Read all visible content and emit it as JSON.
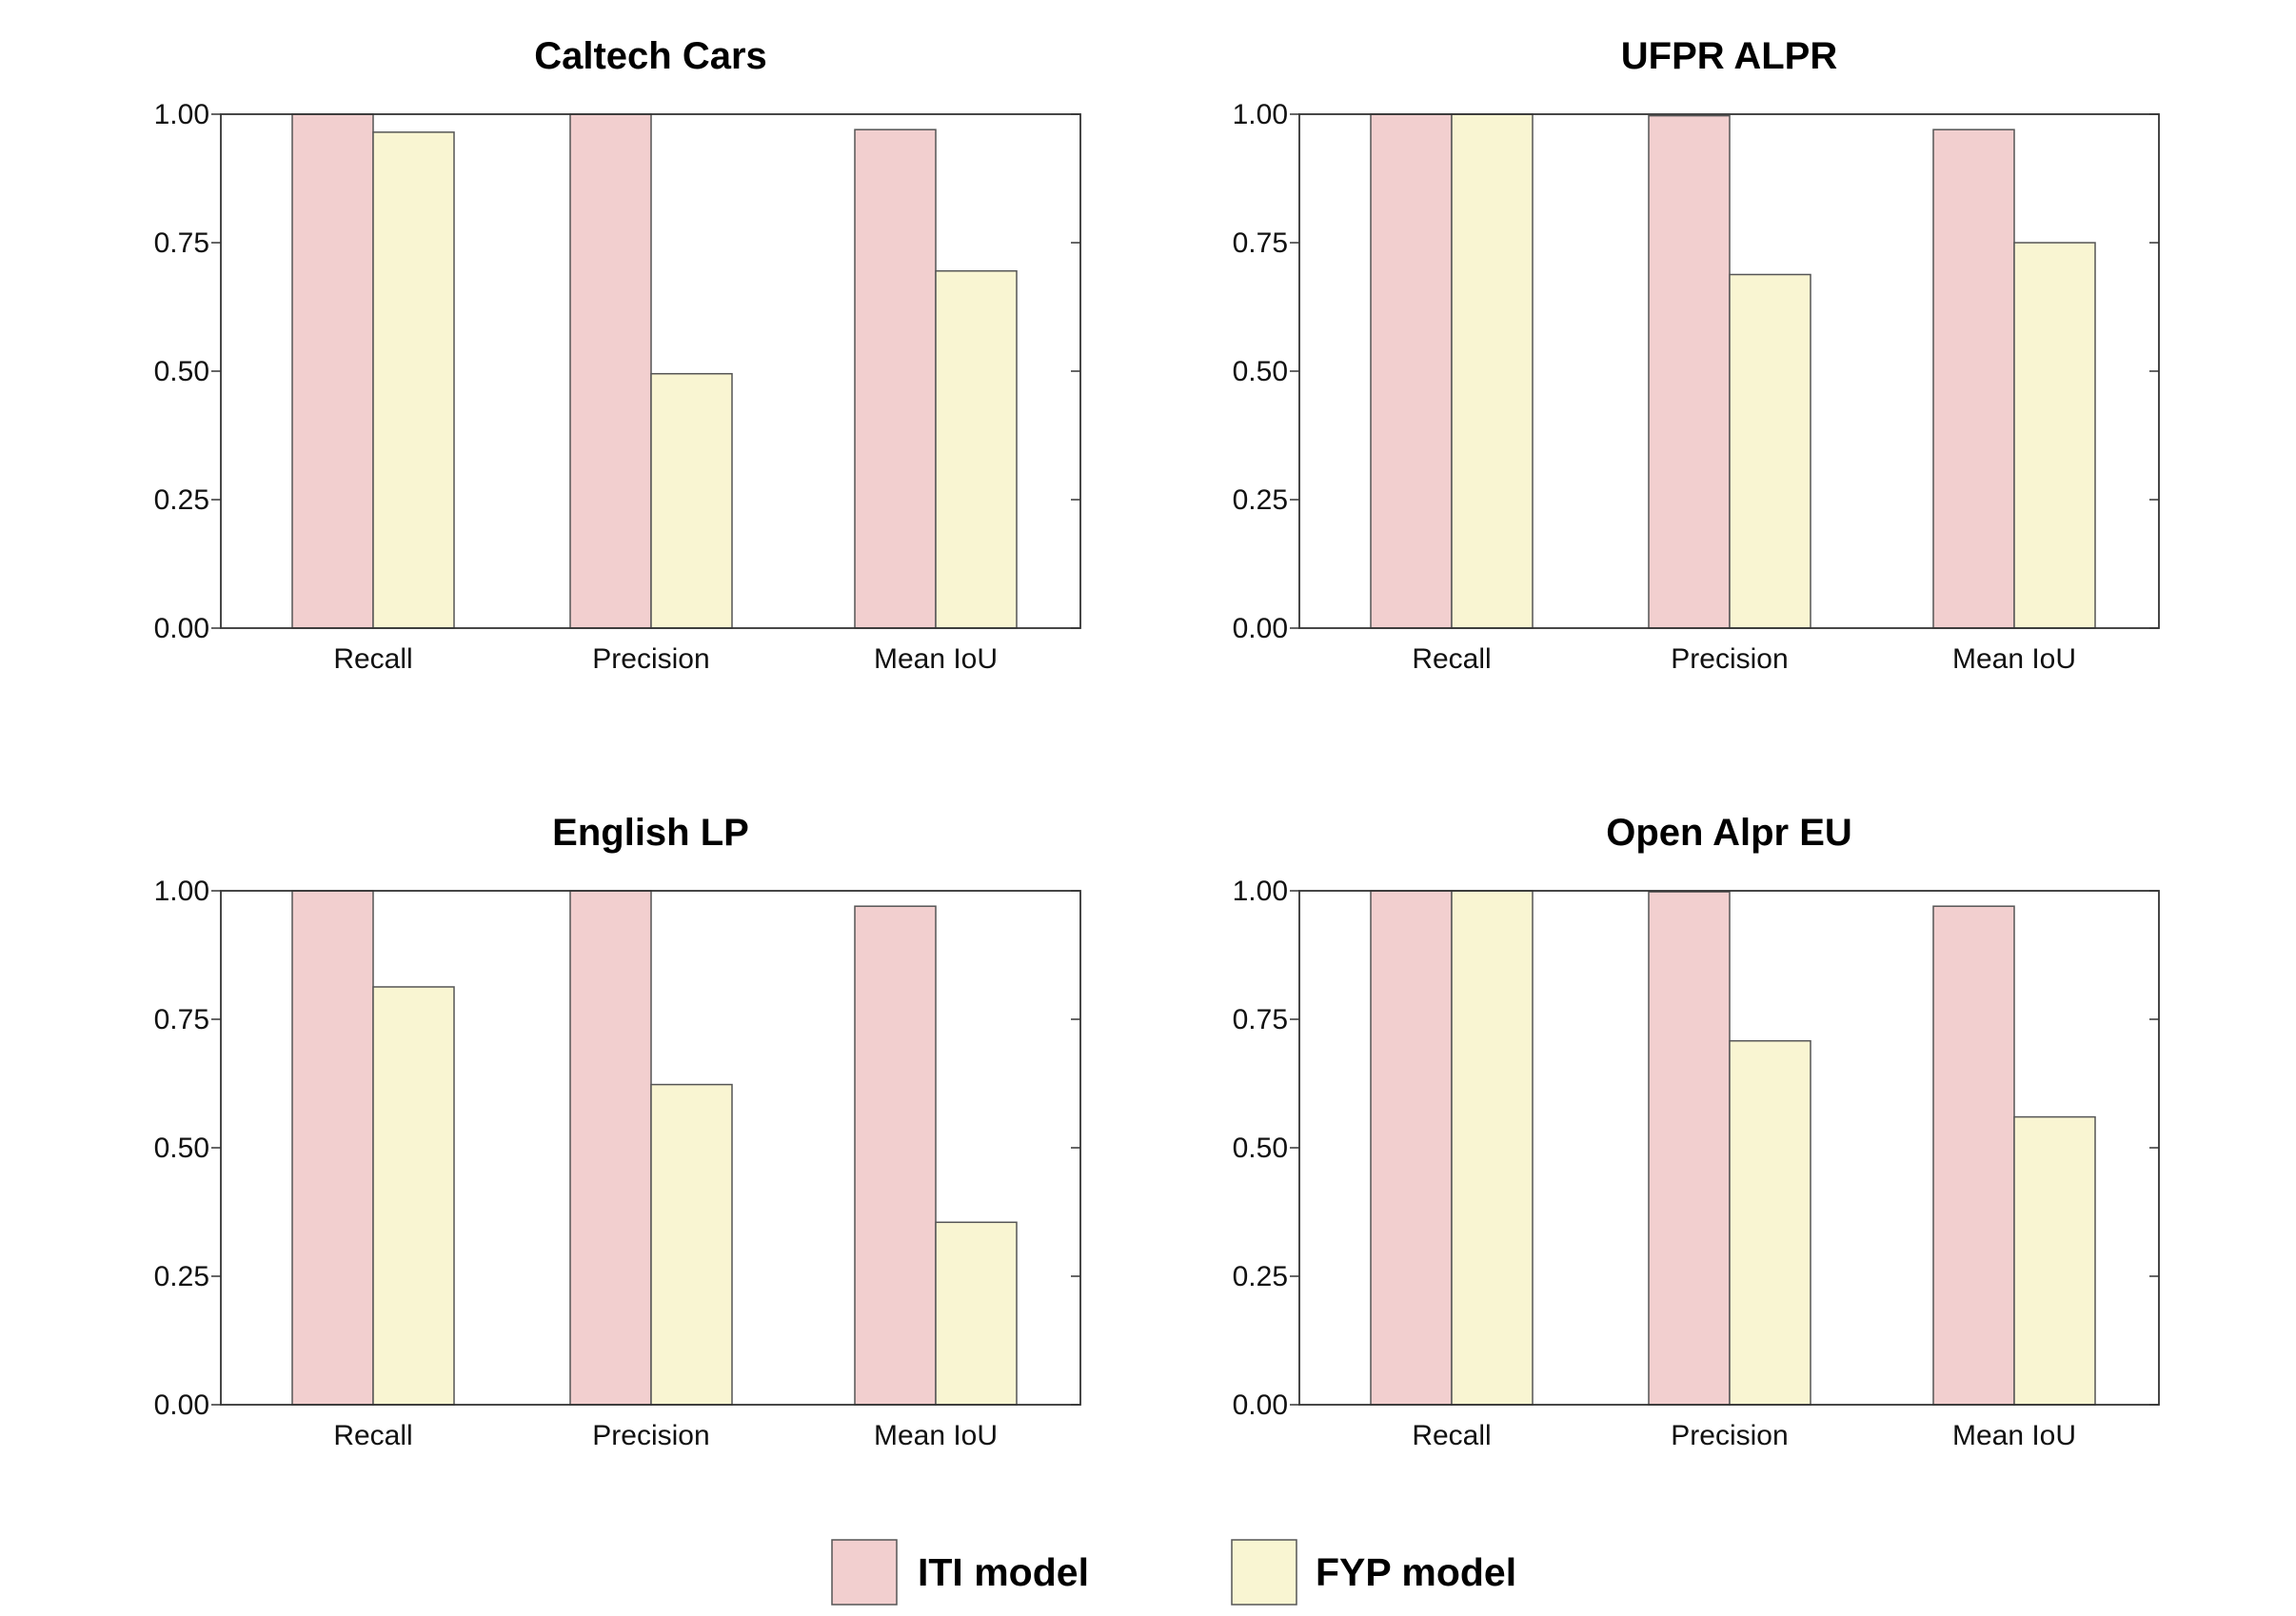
{
  "chart_data": [
    {
      "type": "bar",
      "title": "Caltech Cars",
      "categories": [
        "Recall",
        "Precision",
        "Mean IoU"
      ],
      "series": [
        {
          "name": "ITI model",
          "values": [
            1.0,
            1.0,
            0.97
          ]
        },
        {
          "name": "FYP model",
          "values": [
            0.965,
            0.495,
            0.695
          ]
        }
      ],
      "ylim": [
        0,
        1
      ],
      "yticks": [
        "0.00",
        "0.25",
        "0.50",
        "0.75",
        "1.00"
      ],
      "xlabel": "",
      "ylabel": "",
      "grid": false
    },
    {
      "type": "bar",
      "title": "UFPR ALPR",
      "categories": [
        "Recall",
        "Precision",
        "Mean IoU"
      ],
      "series": [
        {
          "name": "ITI model",
          "values": [
            1.0,
            0.997,
            0.97
          ]
        },
        {
          "name": "FYP model",
          "values": [
            1.0,
            0.688,
            0.75
          ]
        }
      ],
      "ylim": [
        0,
        1
      ],
      "yticks": [
        "0.00",
        "0.25",
        "0.50",
        "0.75",
        "1.00"
      ],
      "xlabel": "",
      "ylabel": "",
      "grid": false
    },
    {
      "type": "bar",
      "title": "English LP",
      "categories": [
        "Recall",
        "Precision",
        "Mean IoU"
      ],
      "series": [
        {
          "name": "ITI model",
          "values": [
            1.0,
            1.0,
            0.97
          ]
        },
        {
          "name": "FYP model",
          "values": [
            0.813,
            0.623,
            0.355
          ]
        }
      ],
      "ylim": [
        0,
        1
      ],
      "yticks": [
        "0.00",
        "0.25",
        "0.50",
        "0.75",
        "1.00"
      ],
      "xlabel": "",
      "ylabel": "",
      "grid": false
    },
    {
      "type": "bar",
      "title": "Open Alpr EU",
      "categories": [
        "Recall",
        "Precision",
        "Mean IoU"
      ],
      "series": [
        {
          "name": "ITI model",
          "values": [
            1.0,
            0.998,
            0.97
          ]
        },
        {
          "name": "FYP model",
          "values": [
            1.0,
            0.708,
            0.56
          ]
        }
      ],
      "ylim": [
        0,
        1
      ],
      "yticks": [
        "0.00",
        "0.25",
        "0.50",
        "0.75",
        "1.00"
      ],
      "xlabel": "",
      "ylabel": "",
      "grid": false
    }
  ],
  "legend": {
    "placement": "bottom-center",
    "items": [
      {
        "label": "ITI model",
        "color": "#f2cfcf"
      },
      {
        "label": "FYP model",
        "color": "#f9f5d2"
      }
    ]
  },
  "colors": {
    "iti": "#f2cfcf",
    "fyp": "#f9f5d2",
    "edge": "#555555",
    "axis": "#333333"
  }
}
